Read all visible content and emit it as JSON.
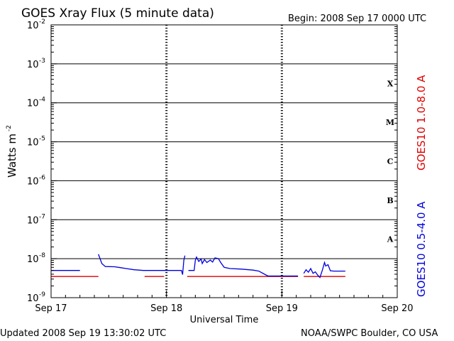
{
  "header": {
    "title": "GOES Xray Flux (5 minute data)",
    "begin": "Begin:  2008 Sep 17 0000 UTC"
  },
  "footer": {
    "updated": "Updated 2008 Sep 19 13:30:02 UTC",
    "credit": "NOAA/SWPC Boulder, CO USA"
  },
  "chart_data": {
    "type": "line",
    "title": "GOES Xray Flux (5 minute data)",
    "xlabel": "Universal Time",
    "ylabel_base": "Watts m",
    "ylabel_exp": "-2",
    "yscale": "log",
    "ylim": [
      1e-09,
      0.01
    ],
    "xlim_days": [
      0,
      3
    ],
    "x_ticks": [
      {
        "day": 0,
        "label": "Sep 17"
      },
      {
        "day": 1,
        "label": "Sep 18"
      },
      {
        "day": 2,
        "label": "Sep 19"
      },
      {
        "day": 3,
        "label": "Sep 20"
      }
    ],
    "y_ticks": [
      {
        "exp": -9,
        "base": "10",
        "sup": "-9"
      },
      {
        "exp": -8,
        "base": "10",
        "sup": "-8"
      },
      {
        "exp": -7,
        "base": "10",
        "sup": "-7"
      },
      {
        "exp": -6,
        "base": "10",
        "sup": "-6"
      },
      {
        "exp": -5,
        "base": "10",
        "sup": "-5"
      },
      {
        "exp": -4,
        "base": "10",
        "sup": "-4"
      },
      {
        "exp": -3,
        "base": "10",
        "sup": "-3"
      },
      {
        "exp": -2,
        "base": "10",
        "sup": "-2"
      }
    ],
    "flare_classes": [
      {
        "label": "A",
        "exp": -8
      },
      {
        "label": "B",
        "exp": -7
      },
      {
        "label": "C",
        "exp": -6
      },
      {
        "label": "M",
        "exp": -5
      },
      {
        "label": "X",
        "exp": -4
      }
    ],
    "series": [
      {
        "name": "GOES10 1.0-8.0 A",
        "color": "#dd0000",
        "segments": [
          [
            [
              0.0,
              3.5e-09
            ],
            [
              0.4,
              3.5e-09
            ],
            [
              0.41,
              3.5e-09
            ]
          ],
          [
            [
              0.81,
              3.5e-09
            ],
            [
              0.98,
              3.5e-09
            ]
          ],
          [
            [
              1.18,
              3.5e-09
            ],
            [
              2.14,
              3.5e-09
            ]
          ],
          [
            [
              2.19,
              3.5e-09
            ],
            [
              2.55,
              3.5e-09
            ]
          ]
        ]
      },
      {
        "name": "GOES10 0.5-4.0 A",
        "color": "#0000dd",
        "segments": [
          [
            [
              0.0,
              5e-09
            ],
            [
              0.25,
              5e-09
            ]
          ],
          [
            [
              0.41,
              1.3e-08
            ],
            [
              0.44,
              7.5e-09
            ],
            [
              0.47,
              6.3e-09
            ],
            [
              0.55,
              6.2e-09
            ],
            [
              0.6,
              5.9e-09
            ],
            [
              0.65,
              5.6e-09
            ],
            [
              0.72,
              5.2e-09
            ],
            [
              0.8,
              5e-09
            ],
            [
              1.13,
              5e-09
            ],
            [
              1.14,
              3.9e-09
            ],
            [
              1.15,
              9e-09
            ],
            [
              1.16,
              1.2e-08
            ]
          ],
          [
            [
              1.19,
              5e-09
            ],
            [
              1.24,
              5e-09
            ],
            [
              1.25,
              9e-09
            ],
            [
              1.26,
              1.1e-08
            ],
            [
              1.28,
              8.5e-09
            ],
            [
              1.3,
              9.8e-09
            ],
            [
              1.31,
              7.5e-09
            ],
            [
              1.33,
              9.5e-09
            ],
            [
              1.35,
              8e-09
            ],
            [
              1.38,
              9.2e-09
            ],
            [
              1.4,
              8.2e-09
            ],
            [
              1.42,
              1.05e-08
            ],
            [
              1.45,
              1e-08
            ],
            [
              1.47,
              8e-09
            ],
            [
              1.5,
              6e-09
            ],
            [
              1.55,
              5.6e-09
            ],
            [
              1.65,
              5.4e-09
            ],
            [
              1.75,
              5.1e-09
            ],
            [
              1.8,
              4.8e-09
            ],
            [
              1.85,
              4e-09
            ],
            [
              1.88,
              3.6e-09
            ],
            [
              2.14,
              3.6e-09
            ]
          ],
          [
            [
              2.19,
              4.2e-09
            ],
            [
              2.21,
              5.2e-09
            ],
            [
              2.23,
              4.5e-09
            ],
            [
              2.25,
              5.6e-09
            ],
            [
              2.27,
              4.2e-09
            ],
            [
              2.29,
              4.6e-09
            ],
            [
              2.31,
              3.8e-09
            ],
            [
              2.33,
              3.3e-09
            ],
            [
              2.35,
              5e-09
            ],
            [
              2.37,
              8e-09
            ],
            [
              2.38,
              6.5e-09
            ],
            [
              2.4,
              7e-09
            ],
            [
              2.42,
              4.9e-09
            ],
            [
              2.45,
              4.8e-09
            ],
            [
              2.55,
              4.8e-09
            ]
          ]
        ]
      }
    ],
    "grid": true
  }
}
